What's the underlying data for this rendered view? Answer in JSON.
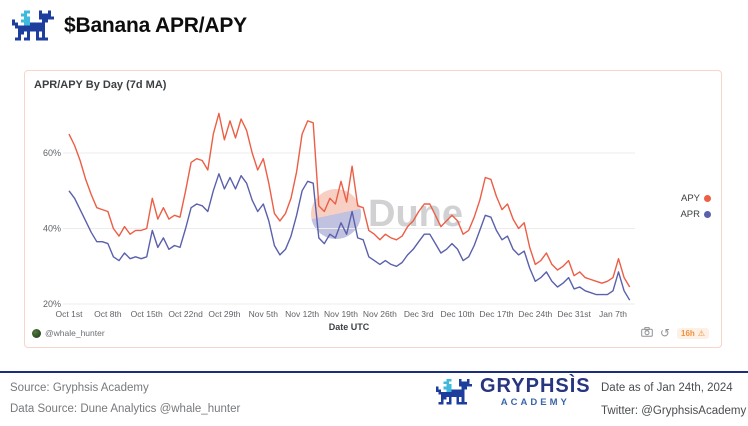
{
  "header": {
    "title": "$Banana APR/APY"
  },
  "chart": {
    "watermark_text": "Dune",
    "attribution": "@whale_hunter",
    "toolbar": {
      "refresh_age": "16h"
    }
  },
  "chart_data": {
    "type": "line",
    "title": "APR/APY By Day (7d MA)",
    "xlabel": "Date UTC",
    "x_unit": "day",
    "x_start": "Oct 1st",
    "x_end": "Jan 10th",
    "x_tick_labels": [
      "Oct 1st",
      "Oct 8th",
      "Oct 15th",
      "Oct 22nd",
      "Oct 29th",
      "Nov 5th",
      "Nov 12th",
      "Nov 19th",
      "Nov 26th",
      "Dec 3rd",
      "Dec 10th",
      "Dec 17th",
      "Dec 24th",
      "Dec 31st",
      "Jan 7th"
    ],
    "x_tick_day_indices": [
      0,
      7,
      14,
      21,
      28,
      35,
      42,
      49,
      56,
      63,
      70,
      77,
      84,
      91,
      98
    ],
    "y_ticks": [
      "20%",
      "40%",
      "60%"
    ],
    "y_grid_values": [
      20,
      40,
      60
    ],
    "ylim": [
      15,
      75
    ],
    "grid": "horizontal",
    "legend_position": "right",
    "series": [
      {
        "name": "APY",
        "color": "#ec5e45",
        "values": [
          65,
          62,
          58,
          53,
          49,
          45.5,
          45,
          44.5,
          40,
          38,
          40.5,
          38.5,
          39.5,
          39.5,
          40,
          48,
          42.5,
          45.5,
          42.5,
          43.5,
          43,
          50,
          57.5,
          58.5,
          58,
          55.5,
          65,
          70.5,
          63.5,
          68.5,
          64,
          69,
          66,
          60,
          55.5,
          58.5,
          52,
          44,
          42,
          44,
          48,
          55,
          65,
          68.5,
          68,
          46,
          44.5,
          48,
          46.5,
          52.5,
          47,
          56.5,
          46,
          45.5,
          39.5,
          38.5,
          37,
          38.5,
          37.5,
          37,
          38,
          40.5,
          42,
          44.5,
          46.5,
          46.5,
          43.5,
          40.5,
          42,
          43.5,
          42,
          38.5,
          39.5,
          43,
          47.5,
          53.5,
          53,
          48.5,
          45,
          46.5,
          42.5,
          40,
          41.5,
          35,
          30.5,
          31.5,
          33.5,
          30.5,
          29,
          30,
          31.5,
          27.5,
          28.5,
          27,
          26.5,
          26,
          25.5,
          26,
          27,
          32,
          27,
          24.5
        ]
      },
      {
        "name": "APR",
        "color": "#5a60ac",
        "values": [
          50,
          48,
          45,
          42,
          39,
          36.5,
          36.5,
          36,
          32.5,
          31.5,
          33.5,
          32,
          32.5,
          32,
          32.5,
          39.5,
          35,
          37.5,
          34.5,
          35.5,
          35,
          40,
          45.5,
          46.5,
          46,
          44.5,
          50,
          54.5,
          50.5,
          53.5,
          50.5,
          54,
          52,
          47.5,
          44.5,
          46.5,
          42,
          35.5,
          33,
          34.5,
          38,
          43.5,
          50,
          52.5,
          52,
          37.5,
          36,
          38.5,
          37.5,
          41.5,
          38.5,
          44.5,
          37.5,
          37,
          32.5,
          31.5,
          30.5,
          31.5,
          30.5,
          30,
          31,
          33,
          34.5,
          36.5,
          38.5,
          38.5,
          36,
          33.5,
          34.5,
          36,
          34.5,
          31.5,
          32.5,
          35.5,
          39.5,
          43.5,
          43,
          39.5,
          37,
          38,
          34.5,
          33,
          34,
          29.5,
          26,
          27,
          28.5,
          26,
          24.5,
          25.5,
          27,
          24,
          24.5,
          23.5,
          23,
          22.5,
          22.5,
          22.5,
          23.5,
          28.5,
          23.5,
          21
        ]
      }
    ]
  },
  "footer": {
    "source": "Source: Gryphsis Academy",
    "data_source": "Data Source: Dune Analytics @whale_hunter",
    "brand_name": "GRYPHSÌS",
    "brand_subtitle": "ACADEMY",
    "date": "Date as of Jan 24th, 2024",
    "twitter": "Twitter: @GryphsisAcademy"
  },
  "colors": {
    "apy_line": "#ec5e45",
    "apr_line": "#5a60ac",
    "panel_border": "#f6d6ca",
    "footer_rule": "#1b2d7f",
    "brand_navy": "#28357f",
    "brand_blue": "#3b66a8",
    "logo_navy": "#1e3e9e",
    "logo_cyan": "#3fb9dc",
    "warning_orange": "#ef913e"
  }
}
